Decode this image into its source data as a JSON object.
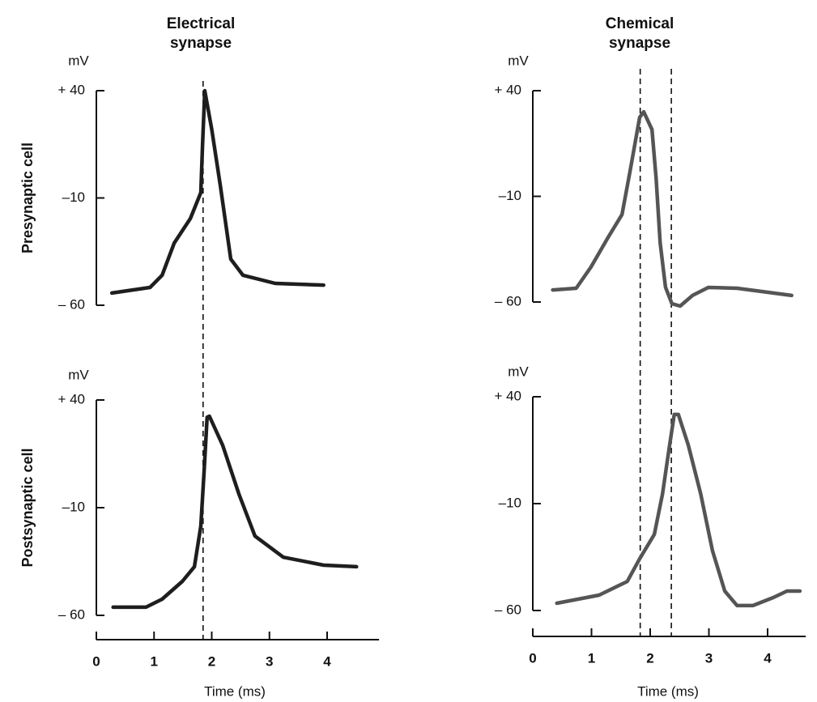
{
  "chart_data": [
    {
      "type": "line",
      "title": "Electrical synapse",
      "side_label": "Presynaptic cell",
      "ylabel": "mV",
      "color": "#1e1e1e",
      "x": [
        0.27,
        0.93,
        1.14,
        1.35,
        1.63,
        1.81,
        1.84,
        1.88,
        2.0,
        2.15,
        2.33,
        2.54,
        3.1,
        3.94
      ],
      "values": [
        -54.3,
        -51.7,
        -46,
        -31,
        -19.6,
        -7.5,
        14.3,
        40,
        22,
        -4.5,
        -38.5,
        -46,
        -49.8,
        -50.6
      ],
      "xlim": [
        0,
        4.9
      ],
      "ylim": [
        -60,
        40
      ],
      "yticks": [
        {
          "value": 40,
          "label": "+ 40"
        },
        {
          "value": -10,
          "label": "–10"
        },
        {
          "value": -60,
          "label": "– 60"
        }
      ],
      "vlines": [
        1.85
      ]
    },
    {
      "type": "line",
      "title": "Chemical synapse",
      "ylabel": "mV",
      "color": "#555555",
      "x": [
        0.34,
        0.74,
        0.99,
        1.27,
        1.52,
        1.66,
        1.82,
        1.89,
        2.03,
        2.1,
        2.17,
        2.26,
        2.37,
        2.51,
        2.72,
        2.99,
        3.48,
        4.41
      ],
      "values": [
        -54.3,
        -53.5,
        -43.5,
        -30,
        -18.6,
        2.5,
        27.4,
        30,
        21.6,
        -1.4,
        -32,
        -53,
        -60.8,
        -61.9,
        -56.9,
        -53.1,
        -53.5,
        -56.9
      ],
      "xlim": [
        0,
        4.65
      ],
      "ylim": [
        -60,
        40
      ],
      "yticks": [
        {
          "value": 40,
          "label": "+ 40"
        },
        {
          "value": -10,
          "label": "–10"
        },
        {
          "value": -60,
          "label": "– 60"
        }
      ],
      "vlines": [
        1.83,
        2.36
      ]
    },
    {
      "type": "line",
      "side_label": "Postsynaptic cell",
      "ylabel": "mV",
      "xlabel": "Time (ms)",
      "color": "#1e1e1e",
      "x": [
        0.29,
        0.86,
        1.14,
        1.49,
        1.7,
        1.81,
        1.87,
        1.92,
        1.96,
        2.19,
        2.47,
        2.75,
        3.24,
        3.94,
        4.51
      ],
      "values": [
        -56.2,
        -56.2,
        -52.5,
        -44.2,
        -37.4,
        -18.6,
        7.7,
        32,
        32.5,
        19,
        -3.6,
        -23.2,
        -33,
        -36.7,
        -37.4
      ],
      "xlim": [
        0,
        4.9
      ],
      "ylim": [
        -60,
        40
      ],
      "xticks": [
        0,
        1,
        2,
        3,
        4
      ],
      "yticks": [
        {
          "value": 40,
          "label": "+ 40"
        },
        {
          "value": -10,
          "label": "–10"
        },
        {
          "value": -60,
          "label": "– 60"
        }
      ]
    },
    {
      "type": "line",
      "ylabel": "mV",
      "xlabel": "Time (ms)",
      "color": "#555555",
      "x": [
        0.41,
        1.13,
        1.61,
        1.82,
        2.07,
        2.21,
        2.32,
        2.41,
        2.48,
        2.65,
        2.86,
        3.06,
        3.27,
        3.48,
        3.75,
        4.1,
        4.33,
        4.55
      ],
      "values": [
        -56.6,
        -52.8,
        -46.4,
        -35.8,
        -24.4,
        -5.5,
        15.4,
        31.7,
        31.7,
        17.3,
        -5.5,
        -32,
        -50.9,
        -57.7,
        -57.7,
        -53.9,
        -50.9,
        -50.9
      ],
      "xlim": [
        0,
        4.65
      ],
      "ylim": [
        -60,
        40
      ],
      "xticks": [
        0,
        1,
        2,
        3,
        4
      ],
      "yticks": [
        {
          "value": 40,
          "label": "+ 40"
        },
        {
          "value": -10,
          "label": "–10"
        },
        {
          "value": -60,
          "label": "– 60"
        }
      ]
    }
  ]
}
